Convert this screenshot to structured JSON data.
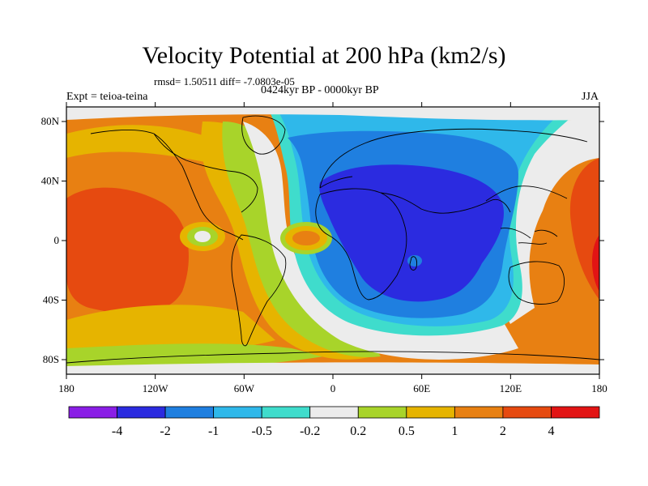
{
  "title": "Velocity Potential at 200 hPa (km2/s)",
  "stats": "rmsd= 1.50511  diff= -7.0803e-05",
  "expt_label": "Expt = teioa-teina",
  "period_label": "0424kyr BP - 0000kyr BP",
  "season": "JJA",
  "lat_ticks": [
    {
      "label": "80N",
      "lat": 80
    },
    {
      "label": "40N",
      "lat": 40
    },
    {
      "label": "0",
      "lat": 0
    },
    {
      "label": "40S",
      "lat": -40
    },
    {
      "label": "80S",
      "lat": -80
    }
  ],
  "lon_ticks": [
    {
      "label": "180",
      "lon": -180
    },
    {
      "label": "120W",
      "lon": -120
    },
    {
      "label": "60W",
      "lon": -60
    },
    {
      "label": "0",
      "lon": 0
    },
    {
      "label": "60E",
      "lon": 60
    },
    {
      "label": "120E",
      "lon": 120
    },
    {
      "label": "180",
      "lon": 180
    }
  ],
  "colorbar": {
    "labels": [
      "-4",
      "-2",
      "-1",
      "-0.5",
      "-0.2",
      "0.2",
      "0.5",
      "1",
      "2",
      "4"
    ],
    "colors": [
      "#8a1ee6",
      "#2b2be0",
      "#1f7fe0",
      "#2fb8ea",
      "#3fdccc",
      "#ececec",
      "#a8d42a",
      "#e6b400",
      "#e88012",
      "#e64a10",
      "#e21414"
    ]
  },
  "colors": {
    "ocean_default": "#e88012",
    "land_outline": "#000000"
  }
}
